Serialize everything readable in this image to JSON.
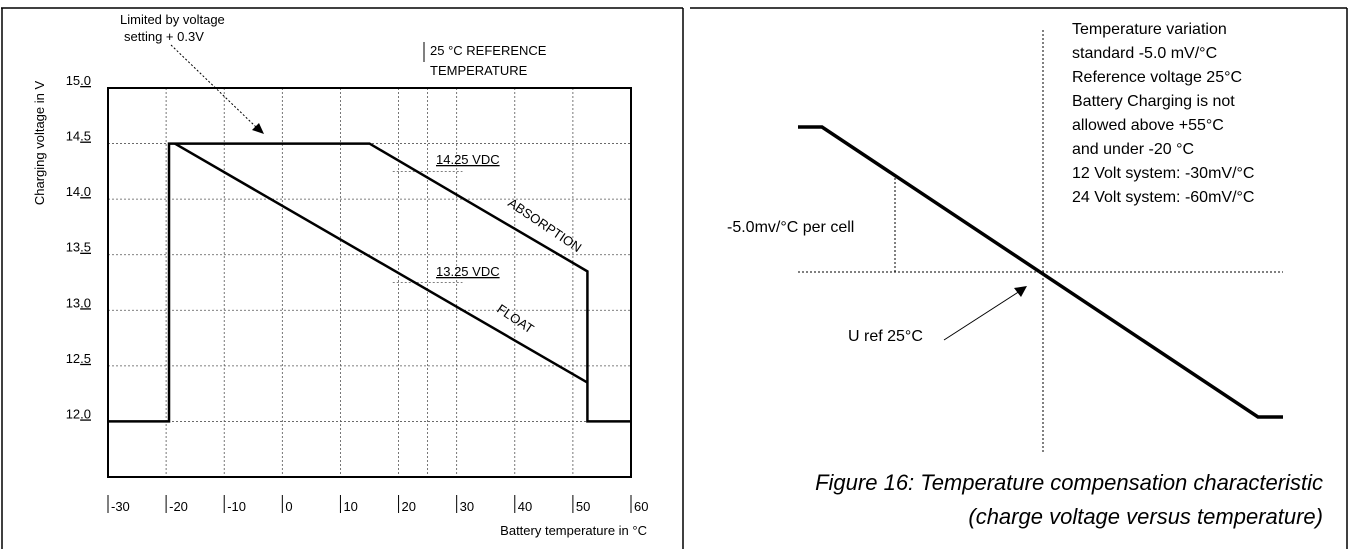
{
  "chart_data": [
    {
      "type": "line",
      "ylabel": "Charging voltage in V",
      "xlabel": "Battery temperature in °C",
      "xlim": [
        -30,
        60
      ],
      "ylim": [
        11.5,
        15.0
      ],
      "grid": true,
      "x_ticks": [
        "-30",
        "-20",
        "-10",
        "0",
        "10",
        "20",
        "30",
        "40",
        "50",
        "60"
      ],
      "y_ticks": [
        "15.0",
        "14.5",
        "14.0",
        "13.5",
        "13.0",
        "12.5",
        "12.0"
      ],
      "series": [
        {
          "name": "ABSORPTION",
          "x": [
            -30,
            -19.5,
            -19.5,
            15,
            52.5,
            52.5,
            60
          ],
          "y": [
            12.0,
            12.0,
            14.5,
            14.5,
            13.35,
            12.0,
            12.0
          ]
        },
        {
          "name": "FLOAT",
          "x": [
            -18.5,
            52.5
          ],
          "y": [
            14.5,
            12.35
          ]
        }
      ],
      "references": [
        {
          "label": "14.25 VDC",
          "value": 14.25,
          "x_from": 19,
          "x_to": 31
        },
        {
          "label": "13.25 VDC",
          "value": 13.25,
          "x_from": 19,
          "x_to": 31
        }
      ],
      "reference_x": {
        "value": 25
      },
      "annotations": [
        "Limited by voltage",
        "setting + 0.3V",
        "25 °C REFERENCE",
        "TEMPERATURE"
      ]
    },
    {
      "type": "line",
      "notes": [
        "Temperature variation",
        "standard -5.0 mV/°C",
        "Reference voltage 25°C",
        "Battery Charging is not",
        "allowed above +55°C",
        "and under -20 °C",
        "12 Volt system: -30mV/°C",
        "24 Volt system: -60mV/°C"
      ],
      "slope_label": "-5.0mv/°C per cell",
      "ref_label": "U ref 25°C"
    }
  ],
  "caption": {
    "line1": "Figure 16: Temperature compensation characteristic",
    "line2": "(charge voltage versus temperature)"
  }
}
